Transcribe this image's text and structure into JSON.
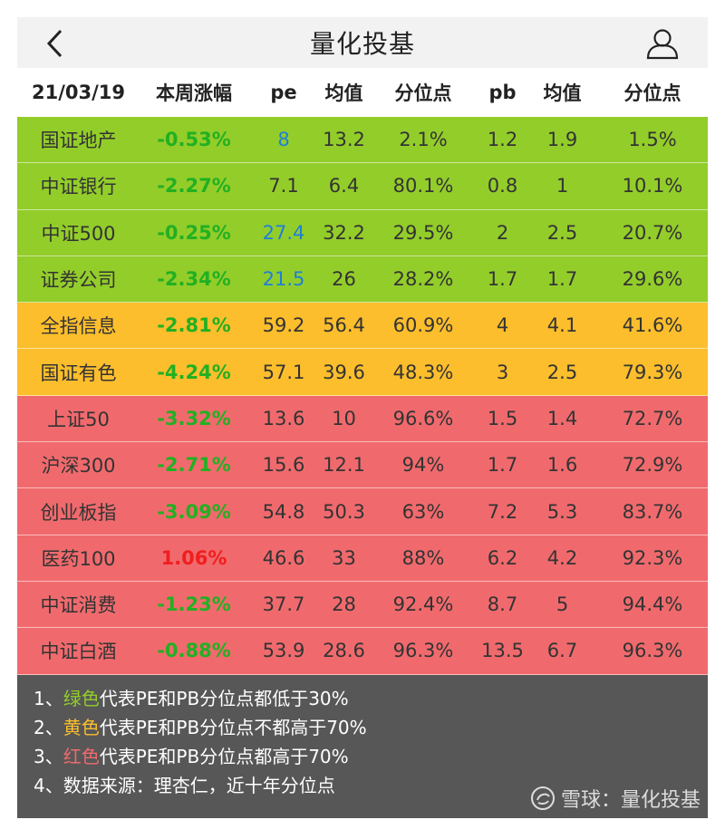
{
  "app": {
    "title": "量化投基"
  },
  "header": {
    "date": "21/03/19",
    "change": "本周涨幅",
    "pe": "pe",
    "pe_avg": "均值",
    "pe_pct": "分位点",
    "pb": "pb",
    "pb_avg": "均值",
    "pb_pct": "分位点"
  },
  "rows": [
    {
      "name": "国证地产",
      "change": "-0.53%",
      "pe": "8",
      "pe_avg": "13.2",
      "pe_pct": "2.1%",
      "pb": "1.2",
      "pb_avg": "1.9",
      "pb_pct": "1.5%"
    },
    {
      "name": "中证银行",
      "change": "-2.27%",
      "pe": "7.1",
      "pe_avg": "6.4",
      "pe_pct": "80.1%",
      "pb": "0.8",
      "pb_avg": "1",
      "pb_pct": "10.1%"
    },
    {
      "name": "中证500",
      "change": "-0.25%",
      "pe": "27.4",
      "pe_avg": "32.2",
      "pe_pct": "29.5%",
      "pb": "2",
      "pb_avg": "2.5",
      "pb_pct": "20.7%"
    },
    {
      "name": "证券公司",
      "change": "-2.34%",
      "pe": "21.5",
      "pe_avg": "26",
      "pe_pct": "28.2%",
      "pb": "1.7",
      "pb_avg": "1.7",
      "pb_pct": "29.6%"
    },
    {
      "name": "全指信息",
      "change": "-2.81%",
      "pe": "59.2",
      "pe_avg": "56.4",
      "pe_pct": "60.9%",
      "pb": "4",
      "pb_avg": "4.1",
      "pb_pct": "41.6%"
    },
    {
      "name": "国证有色",
      "change": "-4.24%",
      "pe": "57.1",
      "pe_avg": "39.6",
      "pe_pct": "48.3%",
      "pb": "3",
      "pb_avg": "2.5",
      "pb_pct": "79.3%"
    },
    {
      "name": "上证50",
      "change": "-3.32%",
      "pe": "13.6",
      "pe_avg": "10",
      "pe_pct": "96.6%",
      "pb": "1.5",
      "pb_avg": "1.4",
      "pb_pct": "72.7%"
    },
    {
      "name": "沪深300",
      "change": "-2.71%",
      "pe": "15.6",
      "pe_avg": "12.1",
      "pe_pct": "94%",
      "pb": "1.7",
      "pb_avg": "1.6",
      "pb_pct": "72.9%"
    },
    {
      "name": "创业板指",
      "change": "-3.09%",
      "pe": "54.8",
      "pe_avg": "50.3",
      "pe_pct": "63%",
      "pb": "7.2",
      "pb_avg": "5.3",
      "pb_pct": "83.7%"
    },
    {
      "name": "医药100",
      "change": "1.06%",
      "pe": "46.6",
      "pe_avg": "33",
      "pe_pct": "88%",
      "pb": "6.2",
      "pb_avg": "4.2",
      "pb_pct": "92.3%"
    },
    {
      "name": "中证消费",
      "change": "-1.23%",
      "pe": "37.7",
      "pe_avg": "28",
      "pe_pct": "92.4%",
      "pb": "8.7",
      "pb_avg": "5",
      "pb_pct": "94.4%"
    },
    {
      "name": "中证白酒",
      "change": "-0.88%",
      "pe": "53.9",
      "pe_avg": "28.6",
      "pe_pct": "96.3%",
      "pb": "13.5",
      "pb_avg": "6.7",
      "pb_pct": "96.3%"
    }
  ],
  "notes": [
    {
      "prefix": "1、",
      "highlight": "绿色",
      "rest": "代表PE和PB分位点都低于30%"
    },
    {
      "prefix": "2、",
      "highlight": "黄色",
      "rest": "代表PE和PB分位点不都高于70%"
    },
    {
      "prefix": "3、",
      "highlight": "红色",
      "rest": "代表PE和PB分位点都高于70%"
    },
    {
      "prefix": "4、",
      "highlight": "",
      "rest": "数据来源：理杏仁，近十年分位点"
    }
  ],
  "watermark": "雪球：量化投基",
  "colors": {
    "green": "#93cd2a",
    "yellow": "#fcbe2c",
    "red": "#f06a6d",
    "change_down": "#22b022",
    "change_up": "#f01e1e",
    "pe_low": "#1e7fd8"
  },
  "icons": {
    "back": "chevron-left-icon",
    "user": "user-icon",
    "watermark": "snowball-logo-icon"
  }
}
